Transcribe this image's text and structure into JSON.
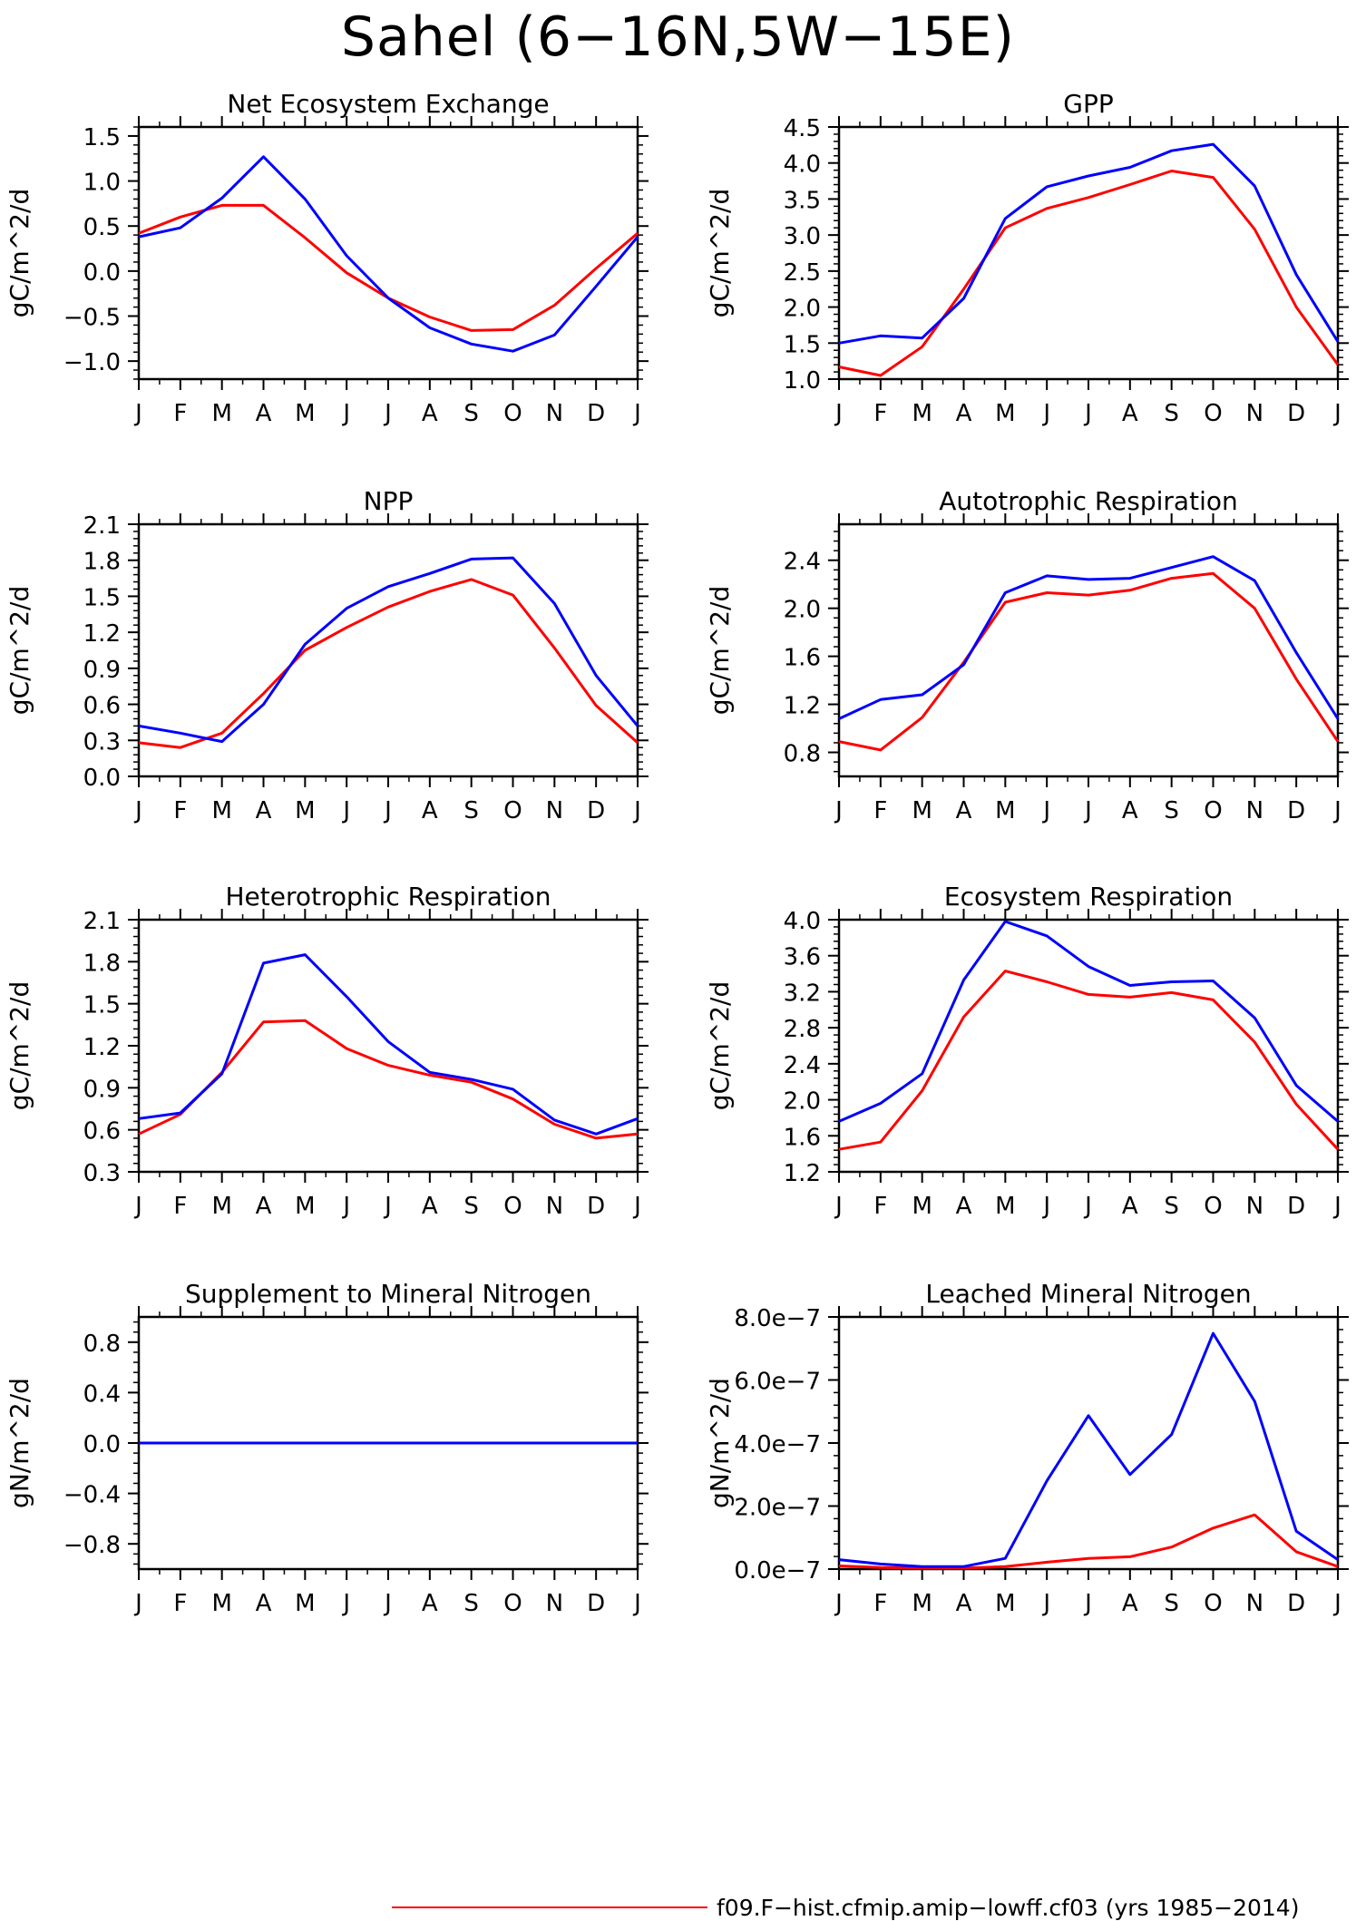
{
  "title": "Sahel (6−16N,5W−15E)",
  "colors": {
    "series1": "#ff0000",
    "series2": "#0000ff"
  },
  "legend": [
    {
      "label": "f09.F−hist.cfmip.amip−lowff.cf03 (yrs 1985−2014)",
      "color": "#ff0000"
    }
  ],
  "chart_data": [
    {
      "type": "line",
      "title": "Net Ecosystem Exchange",
      "ylabel": "gC/m^2/d",
      "categories": [
        "J",
        "F",
        "M",
        "A",
        "M",
        "J",
        "J",
        "A",
        "S",
        "O",
        "N",
        "D",
        "J"
      ],
      "ylim": [
        -1.2,
        1.6
      ],
      "yticks": [
        "1.5",
        "1.0",
        "0.5",
        "0.0",
        "−0.5",
        "−1.0"
      ],
      "ytick_values": [
        1.5,
        1.0,
        0.5,
        0.0,
        -0.5,
        -1.0
      ],
      "series": [
        {
          "color": "#ff0000",
          "values": [
            0.42,
            0.6,
            0.73,
            0.73,
            0.37,
            -0.02,
            -0.3,
            -0.51,
            -0.66,
            -0.65,
            -0.38,
            0.03,
            0.42
          ]
        },
        {
          "color": "#0000ff",
          "values": [
            0.38,
            0.48,
            0.81,
            1.27,
            0.8,
            0.17,
            -0.3,
            -0.63,
            -0.81,
            -0.89,
            -0.71,
            -0.17,
            0.38
          ]
        }
      ]
    },
    {
      "type": "line",
      "title": "GPP",
      "ylabel": "gC/m^2/d",
      "categories": [
        "J",
        "F",
        "M",
        "A",
        "M",
        "J",
        "J",
        "A",
        "S",
        "O",
        "N",
        "D",
        "J"
      ],
      "ylim": [
        1.0,
        4.5
      ],
      "yticks": [
        "4.5",
        "4.0",
        "3.5",
        "3.0",
        "2.5",
        "2.0",
        "1.5",
        "1.0"
      ],
      "ytick_values": [
        4.5,
        4.0,
        3.5,
        3.0,
        2.5,
        2.0,
        1.5,
        1.0
      ],
      "series": [
        {
          "color": "#ff0000",
          "values": [
            1.17,
            1.05,
            1.45,
            2.25,
            3.1,
            3.37,
            3.52,
            3.7,
            3.89,
            3.8,
            3.08,
            2.0,
            1.2
          ]
        },
        {
          "color": "#0000ff",
          "values": [
            1.5,
            1.6,
            1.57,
            2.12,
            3.23,
            3.67,
            3.82,
            3.94,
            4.17,
            4.26,
            3.68,
            2.45,
            1.52
          ]
        }
      ]
    },
    {
      "type": "line",
      "title": "NPP",
      "ylabel": "gC/m^2/d",
      "categories": [
        "J",
        "F",
        "M",
        "A",
        "M",
        "J",
        "J",
        "A",
        "S",
        "O",
        "N",
        "D",
        "J"
      ],
      "ylim": [
        0.0,
        2.1
      ],
      "yticks": [
        "2.1",
        "1.8",
        "1.5",
        "1.2",
        "0.9",
        "0.6",
        "0.3",
        "0.0"
      ],
      "ytick_values": [
        2.1,
        1.8,
        1.5,
        1.2,
        0.9,
        0.6,
        0.3,
        0.0
      ],
      "series": [
        {
          "color": "#ff0000",
          "values": [
            0.28,
            0.24,
            0.36,
            0.69,
            1.05,
            1.24,
            1.41,
            1.54,
            1.64,
            1.51,
            1.07,
            0.59,
            0.28
          ]
        },
        {
          "color": "#0000ff",
          "values": [
            0.42,
            0.36,
            0.29,
            0.6,
            1.1,
            1.4,
            1.58,
            1.69,
            1.81,
            1.82,
            1.44,
            0.84,
            0.42
          ]
        }
      ]
    },
    {
      "type": "line",
      "title": "Autotrophic Respiration",
      "ylabel": "gC/m^2/d",
      "categories": [
        "J",
        "F",
        "M",
        "A",
        "M",
        "J",
        "J",
        "A",
        "S",
        "O",
        "N",
        "D",
        "J"
      ],
      "ylim": [
        0.6,
        2.7
      ],
      "yticks": [
        "2.4",
        "2.0",
        "1.6",
        "1.2",
        "0.8"
      ],
      "ytick_values": [
        2.4,
        2.0,
        1.6,
        1.2,
        0.8
      ],
      "series": [
        {
          "color": "#ff0000",
          "values": [
            0.89,
            0.82,
            1.09,
            1.55,
            2.05,
            2.13,
            2.11,
            2.15,
            2.25,
            2.29,
            2.0,
            1.41,
            0.89
          ]
        },
        {
          "color": "#0000ff",
          "values": [
            1.08,
            1.24,
            1.28,
            1.53,
            2.13,
            2.27,
            2.24,
            2.25,
            2.34,
            2.43,
            2.23,
            1.63,
            1.08
          ]
        }
      ]
    },
    {
      "type": "line",
      "title": "Heterotrophic Respiration",
      "ylabel": "gC/m^2/d",
      "categories": [
        "J",
        "F",
        "M",
        "A",
        "M",
        "J",
        "J",
        "A",
        "S",
        "O",
        "N",
        "D",
        "J"
      ],
      "ylim": [
        0.3,
        2.1
      ],
      "yticks": [
        "2.1",
        "1.8",
        "1.5",
        "1.2",
        "0.9",
        "0.6",
        "0.3"
      ],
      "ytick_values": [
        2.1,
        1.8,
        1.5,
        1.2,
        0.9,
        0.6,
        0.3
      ],
      "series": [
        {
          "color": "#ff0000",
          "values": [
            0.57,
            0.71,
            1.01,
            1.37,
            1.38,
            1.18,
            1.06,
            0.99,
            0.94,
            0.82,
            0.64,
            0.54,
            0.57
          ]
        },
        {
          "color": "#0000ff",
          "values": [
            0.68,
            0.72,
            1.0,
            1.79,
            1.85,
            1.55,
            1.23,
            1.01,
            0.96,
            0.89,
            0.67,
            0.57,
            0.68
          ]
        }
      ]
    },
    {
      "type": "line",
      "title": "Ecosystem Respiration",
      "ylabel": "gC/m^2/d",
      "categories": [
        "J",
        "F",
        "M",
        "A",
        "M",
        "J",
        "J",
        "A",
        "S",
        "O",
        "N",
        "D",
        "J"
      ],
      "ylim": [
        1.2,
        4.0
      ],
      "yticks": [
        "4.0",
        "3.6",
        "3.2",
        "2.8",
        "2.4",
        "2.0",
        "1.6",
        "1.2"
      ],
      "ytick_values": [
        4.0,
        3.6,
        3.2,
        2.8,
        2.4,
        2.0,
        1.6,
        1.2
      ],
      "series": [
        {
          "color": "#ff0000",
          "values": [
            1.45,
            1.53,
            2.1,
            2.92,
            3.43,
            3.31,
            3.17,
            3.14,
            3.19,
            3.11,
            2.64,
            1.95,
            1.45
          ]
        },
        {
          "color": "#0000ff",
          "values": [
            1.76,
            1.96,
            2.29,
            3.33,
            3.98,
            3.82,
            3.48,
            3.27,
            3.31,
            3.32,
            2.91,
            2.16,
            1.76
          ]
        }
      ]
    },
    {
      "type": "line",
      "title": "Supplement to Mineral Nitrogen",
      "ylabel": "gN/m^2/d",
      "categories": [
        "J",
        "F",
        "M",
        "A",
        "M",
        "J",
        "J",
        "A",
        "S",
        "O",
        "N",
        "D",
        "J"
      ],
      "ylim": [
        -1.0,
        1.0
      ],
      "yticks": [
        "0.8",
        "0.4",
        "0.0",
        "−0.4",
        "−0.8"
      ],
      "ytick_values": [
        0.8,
        0.4,
        0.0,
        -0.4,
        -0.8
      ],
      "series": [
        {
          "color": "#ff0000",
          "values": [
            0,
            0,
            0,
            0,
            0,
            0,
            0,
            0,
            0,
            0,
            0,
            0,
            0
          ]
        },
        {
          "color": "#0000ff",
          "values": [
            0,
            0,
            0,
            0,
            0,
            0,
            0,
            0,
            0,
            0,
            0,
            0,
            0
          ]
        }
      ]
    },
    {
      "type": "line",
      "title": "Leached Mineral Nitrogen",
      "ylabel": "gN/m^2/d",
      "categories": [
        "J",
        "F",
        "M",
        "A",
        "M",
        "J",
        "J",
        "A",
        "S",
        "O",
        "N",
        "D",
        "J"
      ],
      "ylim": [
        0.0,
        8e-07
      ],
      "yticks": [
        "8.0e−7",
        "6.0e−7",
        "4.0e−7",
        "2.0e−7",
        "0.0e−7"
      ],
      "ytick_values": [
        8e-07,
        6e-07,
        4e-07,
        2e-07,
        0.0
      ],
      "series": [
        {
          "color": "#ff0000",
          "values": [
            1e-08,
            5e-09,
            3e-09,
            3e-09,
            8e-09,
            2.2e-08,
            3.4e-08,
            3.9e-08,
            7e-08,
            1.3e-07,
            1.72e-07,
            5.5e-08,
            8e-09
          ]
        },
        {
          "color": "#0000ff",
          "values": [
            3e-08,
            1.6e-08,
            8e-09,
            8e-09,
            3.4e-08,
            2.8e-07,
            4.87e-07,
            3e-07,
            4.27e-07,
            7.48e-07,
            5.32e-07,
            1.2e-07,
            3e-08
          ]
        }
      ]
    }
  ]
}
